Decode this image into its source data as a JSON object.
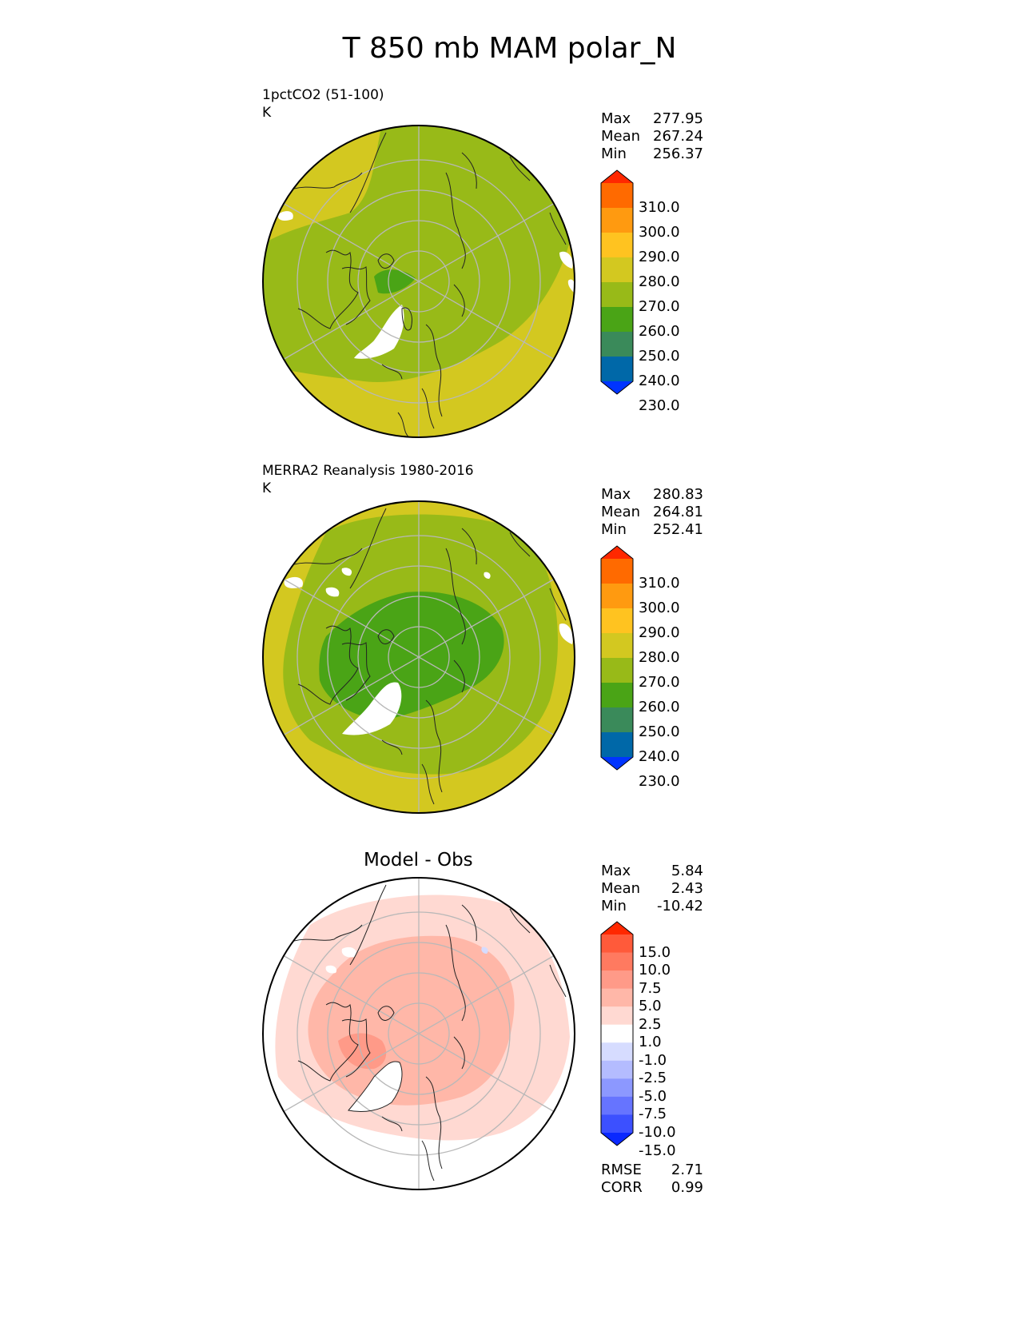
{
  "title": "T 850 mb MAM polar_N",
  "panels": [
    {
      "id": "test",
      "label": "1pctCO2 (51-100)",
      "units": "K",
      "stats": {
        "max_label": "Max",
        "max": "277.95",
        "mean_label": "Mean",
        "mean": "267.24",
        "min_label": "Min",
        "min": "256.37"
      }
    },
    {
      "id": "ref",
      "label": "MERRA2 Reanalysis 1980-2016",
      "units": "K",
      "stats": {
        "max_label": "Max",
        "max": "280.83",
        "mean_label": "Mean",
        "mean": "264.81",
        "min_label": "Min",
        "min": "252.41"
      }
    },
    {
      "id": "diff",
      "label": "Model - Obs",
      "stats": {
        "max_label": "Max",
        "max": "5.84",
        "mean_label": "Mean",
        "mean": "2.43",
        "min_label": "Min",
        "min": "-10.42"
      },
      "metrics": {
        "rmse_label": "RMSE",
        "rmse": "2.71",
        "corr_label": "CORR",
        "corr": "0.99"
      }
    }
  ],
  "colorbar_abs": {
    "labels": [
      "310.0",
      "300.0",
      "290.0",
      "280.0",
      "270.0",
      "260.0",
      "250.0",
      "240.0",
      "230.0"
    ],
    "colors": [
      "#ff2800",
      "#ff6a00",
      "#ff9a10",
      "#ffc320",
      "#d3c820",
      "#98ba18",
      "#4aa416",
      "#3a8a5a",
      "#0068a8",
      "#0034ff"
    ]
  },
  "colorbar_diff": {
    "labels": [
      "15.0",
      "10.0",
      "7.5",
      "5.0",
      "2.5",
      "1.0",
      "-1.0",
      "-2.5",
      "-5.0",
      "-7.5",
      "-10.0",
      "-15.0"
    ],
    "colors": [
      "#ff2800",
      "#ff5a3a",
      "#ff7a60",
      "#ff9a88",
      "#ffb7a8",
      "#ffd9d2",
      "#ffffff",
      "#d6dcff",
      "#b4bcff",
      "#8c98ff",
      "#6674ff",
      "#3c50ff",
      "#0a28ff"
    ]
  }
}
